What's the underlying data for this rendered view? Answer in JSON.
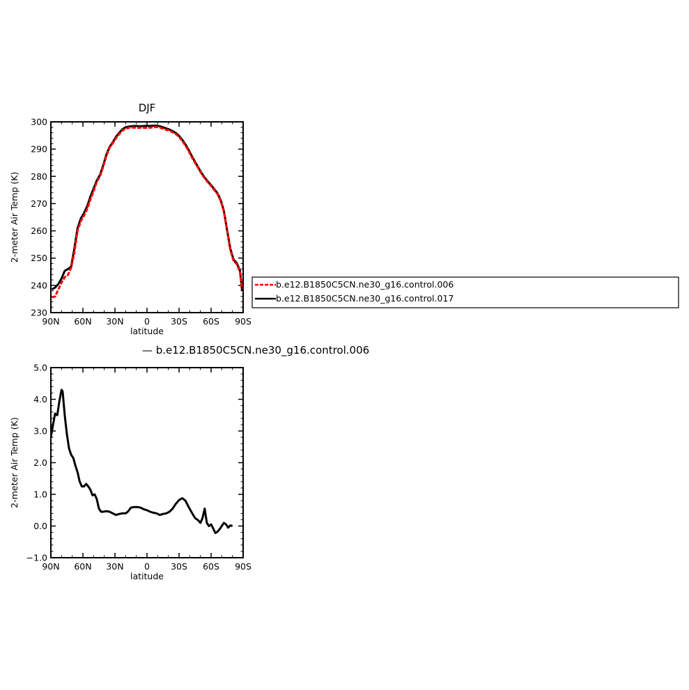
{
  "chart_data": [
    {
      "type": "line",
      "title": "DJF",
      "xlabel": "latitude",
      "ylabel": "2-meter Air Temp (K)",
      "xlim": [
        90,
        -90
      ],
      "ylim": [
        230,
        300
      ],
      "x_ticks": [
        {
          "value": 90,
          "label": "90N"
        },
        {
          "value": 60,
          "label": "60N"
        },
        {
          "value": 30,
          "label": "30N"
        },
        {
          "value": 0,
          "label": "0"
        },
        {
          "value": -30,
          "label": "30S"
        },
        {
          "value": -60,
          "label": "60S"
        },
        {
          "value": -90,
          "label": "90S"
        }
      ],
      "y_ticks": [
        {
          "value": 230,
          "label": "230"
        },
        {
          "value": 240,
          "label": "240"
        },
        {
          "value": 250,
          "label": "250"
        },
        {
          "value": 260,
          "label": "260"
        },
        {
          "value": 270,
          "label": "270"
        },
        {
          "value": 280,
          "label": "280"
        },
        {
          "value": 290,
          "label": "290"
        },
        {
          "value": 300,
          "label": "300"
        }
      ],
      "legend": {
        "placement": "right",
        "entries": [
          "b.e12.B1850C5CN.ne30_g16.control.006",
          "b.e12.B1850C5CN.ne30_g16.control.017"
        ]
      },
      "series": [
        {
          "name": "b.e12.B1850C5CN.ne30_g16.control.006",
          "color": "#ff0000",
          "dash": "dashed",
          "points": [
            [
              89,
              235.6
            ],
            [
              86,
              235.9
            ],
            [
              83,
              238.5
            ],
            [
              80,
              241.0
            ],
            [
              77,
              243.0
            ],
            [
              74,
              243.8
            ],
            [
              71,
              246.5
            ],
            [
              68,
              252.0
            ],
            [
              65,
              260.0
            ],
            [
              62,
              263.5
            ],
            [
              59,
              265.5
            ],
            [
              56,
              268.0
            ],
            [
              53,
              271.5
            ],
            [
              50,
              274.5
            ],
            [
              47,
              278.0
            ],
            [
              44,
              280.0
            ],
            [
              41,
              283.5
            ],
            [
              38,
              287.5
            ],
            [
              35,
              290.5
            ],
            [
              32,
              292.2
            ],
            [
              29,
              294.0
            ],
            [
              26,
              295.5
            ],
            [
              23,
              296.8
            ],
            [
              20,
              297.5
            ],
            [
              17,
              297.8
            ],
            [
              14,
              297.9
            ],
            [
              11,
              297.9
            ],
            [
              8,
              297.8
            ],
            [
              5,
              297.9
            ],
            [
              2,
              297.8
            ],
            [
              0,
              297.8
            ],
            [
              -3,
              297.9
            ],
            [
              -6,
              298.0
            ],
            [
              -9,
              298.1
            ],
            [
              -12,
              297.9
            ],
            [
              -15,
              297.5
            ],
            [
              -18,
              297.1
            ],
            [
              -21,
              296.8
            ],
            [
              -24,
              296.2
            ],
            [
              -27,
              295.5
            ],
            [
              -30,
              294.5
            ],
            [
              -33,
              293.0
            ],
            [
              -36,
              291.3
            ],
            [
              -39,
              289.3
            ],
            [
              -42,
              287.0
            ],
            [
              -45,
              285.0
            ],
            [
              -48,
              283.0
            ],
            [
              -51,
              281.0
            ],
            [
              -54,
              279.3
            ],
            [
              -57,
              277.8
            ],
            [
              -60,
              276.5
            ],
            [
              -63,
              275.0
            ],
            [
              -66,
              273.5
            ],
            [
              -69,
              271.0
            ],
            [
              -72,
              267.0
            ],
            [
              -75,
              260.0
            ],
            [
              -78,
              253.0
            ],
            [
              -81,
              249.0
            ],
            [
              -84,
              247.8
            ],
            [
              -87,
              245.0
            ],
            [
              -89,
              238.8
            ]
          ]
        },
        {
          "name": "b.e12.B1850C5CN.ne30_g16.control.017",
          "color": "#000000",
          "dash": "solid",
          "points": [
            [
              89,
              238.5
            ],
            [
              86,
              239.2
            ],
            [
              83,
              240.5
            ],
            [
              80,
              242.5
            ],
            [
              77,
              245.3
            ],
            [
              74,
              246.0
            ],
            [
              71,
              246.8
            ],
            [
              68,
              253.5
            ],
            [
              65,
              261.0
            ],
            [
              62,
              264.5
            ],
            [
              59,
              266.5
            ],
            [
              56,
              269.0
            ],
            [
              53,
              272.5
            ],
            [
              50,
              275.5
            ],
            [
              47,
              278.5
            ],
            [
              44,
              280.5
            ],
            [
              41,
              284.0
            ],
            [
              38,
              288.0
            ],
            [
              35,
              290.8
            ],
            [
              32,
              292.5
            ],
            [
              29,
              294.5
            ],
            [
              26,
              296.0
            ],
            [
              23,
              297.3
            ],
            [
              20,
              298.0
            ],
            [
              17,
              298.3
            ],
            [
              14,
              298.4
            ],
            [
              11,
              298.5
            ],
            [
              8,
              298.4
            ],
            [
              5,
              298.4
            ],
            [
              2,
              298.5
            ],
            [
              0,
              298.5
            ],
            [
              -3,
              298.5
            ],
            [
              -6,
              298.6
            ],
            [
              -9,
              298.6
            ],
            [
              -12,
              298.4
            ],
            [
              -15,
              298.0
            ],
            [
              -18,
              297.6
            ],
            [
              -21,
              297.2
            ],
            [
              -24,
              296.6
            ],
            [
              -27,
              295.9
            ],
            [
              -30,
              294.9
            ],
            [
              -33,
              293.4
            ],
            [
              -36,
              291.7
            ],
            [
              -39,
              289.7
            ],
            [
              -42,
              287.4
            ],
            [
              -45,
              285.3
            ],
            [
              -48,
              283.3
            ],
            [
              -51,
              281.3
            ],
            [
              -54,
              279.6
            ],
            [
              -57,
              278.1
            ],
            [
              -60,
              276.8
            ],
            [
              -63,
              275.3
            ],
            [
              -66,
              273.8
            ],
            [
              -69,
              271.3
            ],
            [
              -72,
              267.3
            ],
            [
              -75,
              260.3
            ],
            [
              -78,
              253.5
            ],
            [
              -81,
              249.5
            ],
            [
              -84,
              248.2
            ],
            [
              -87,
              245.5
            ],
            [
              -89,
              238.0
            ]
          ]
        }
      ]
    },
    {
      "type": "line",
      "xlabel": "latitude",
      "ylabel": "2-meter Air Temp (K)",
      "xlim": [
        90,
        -90
      ],
      "ylim": [
        -1.0,
        5.0
      ],
      "x_ticks": [
        {
          "value": 90,
          "label": "90N"
        },
        {
          "value": 60,
          "label": "60N"
        },
        {
          "value": 30,
          "label": "30N"
        },
        {
          "value": 0,
          "label": "0"
        },
        {
          "value": -30,
          "label": "30S"
        },
        {
          "value": -60,
          "label": "60S"
        },
        {
          "value": -90,
          "label": "90S"
        }
      ],
      "y_ticks": [
        {
          "value": -1.0,
          "label": "−1.0"
        },
        {
          "value": 0.0,
          "label": "0.0"
        },
        {
          "value": 1.0,
          "label": "1.0"
        },
        {
          "value": 2.0,
          "label": "2.0"
        },
        {
          "value": 3.0,
          "label": "3.0"
        },
        {
          "value": 4.0,
          "label": "4.0"
        },
        {
          "value": 5.0,
          "label": "5.0"
        }
      ],
      "legend": {
        "placement": "top",
        "entries": [
          "b.e12.B1850C5CN.ne30_g16.control.006"
        ]
      },
      "series": [
        {
          "name": "b.e12.B1850C5CN.ne30_g16.control.006",
          "color": "#000000",
          "dash": "solid",
          "points": [
            [
              90,
              2.8
            ],
            [
              88,
              3.2
            ],
            [
              86,
              3.55
            ],
            [
              84,
              3.5
            ],
            [
              82,
              3.95
            ],
            [
              80,
              4.3
            ],
            [
              79,
              4.25
            ],
            [
              77,
              3.5
            ],
            [
              75,
              2.9
            ],
            [
              73,
              2.45
            ],
            [
              71,
              2.25
            ],
            [
              69,
              2.15
            ],
            [
              67,
              1.9
            ],
            [
              65,
              1.7
            ],
            [
              63,
              1.4
            ],
            [
              61,
              1.25
            ],
            [
              59,
              1.25
            ],
            [
              57,
              1.33
            ],
            [
              55,
              1.25
            ],
            [
              53,
              1.15
            ],
            [
              51,
              0.97
            ],
            [
              49,
              1.0
            ],
            [
              47,
              0.85
            ],
            [
              45,
              0.55
            ],
            [
              43,
              0.45
            ],
            [
              41,
              0.45
            ],
            [
              38,
              0.47
            ],
            [
              35,
              0.45
            ],
            [
              32,
              0.4
            ],
            [
              29,
              0.35
            ],
            [
              26,
              0.38
            ],
            [
              23,
              0.4
            ],
            [
              20,
              0.4
            ],
            [
              18,
              0.45
            ],
            [
              15,
              0.58
            ],
            [
              12,
              0.6
            ],
            [
              9,
              0.6
            ],
            [
              6,
              0.58
            ],
            [
              3,
              0.53
            ],
            [
              0,
              0.5
            ],
            [
              -3,
              0.45
            ],
            [
              -6,
              0.42
            ],
            [
              -9,
              0.4
            ],
            [
              -12,
              0.35
            ],
            [
              -15,
              0.38
            ],
            [
              -18,
              0.4
            ],
            [
              -21,
              0.45
            ],
            [
              -24,
              0.55
            ],
            [
              -27,
              0.7
            ],
            [
              -30,
              0.82
            ],
            [
              -33,
              0.88
            ],
            [
              -36,
              0.8
            ],
            [
              -39,
              0.6
            ],
            [
              -42,
              0.42
            ],
            [
              -45,
              0.25
            ],
            [
              -48,
              0.18
            ],
            [
              -50,
              0.1
            ],
            [
              -52,
              0.25
            ],
            [
              -54,
              0.55
            ],
            [
              -56,
              0.1
            ],
            [
              -58,
              0.0
            ],
            [
              -60,
              0.05
            ],
            [
              -62,
              -0.08
            ],
            [
              -64,
              -0.22
            ],
            [
              -66,
              -0.18
            ],
            [
              -68,
              -0.1
            ],
            [
              -70,
              0.0
            ],
            [
              -72,
              0.1
            ],
            [
              -74,
              0.05
            ],
            [
              -76,
              -0.05
            ],
            [
              -78,
              0.02
            ],
            [
              -80,
              0.0
            ]
          ]
        }
      ]
    }
  ],
  "legend_top": {
    "entries": [
      "b.e12.B1850C5CN.ne30_g16.control.006",
      "b.e12.B1850C5CN.ne30_g16.control.017"
    ]
  },
  "legend_diff": {
    "label": "— b.e12.B1850C5CN.ne30_g16.control.006"
  }
}
